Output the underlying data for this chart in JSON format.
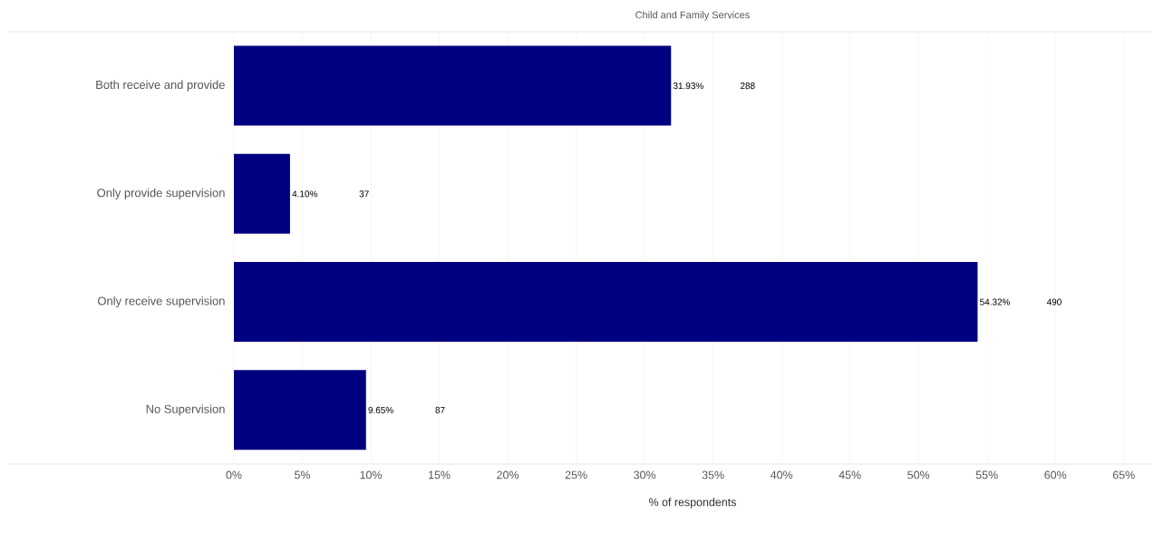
{
  "chart_data": {
    "type": "bar",
    "orientation": "horizontal",
    "title": "Child and Family Services",
    "xlabel": "% of respondents",
    "categories": [
      "Both receive and provide",
      "Only provide supervision",
      "Only receive supervision",
      "No Supervision"
    ],
    "values": [
      31.93,
      4.1,
      54.32,
      9.65
    ],
    "value_labels": [
      "31.93%",
      "4.10%",
      "54.32%",
      "9.65%"
    ],
    "color": "#000080",
    "xlim": [
      0,
      67
    ],
    "xticks": [
      {
        "value": 0,
        "label": "0%"
      },
      {
        "value": 5,
        "label": "5%"
      },
      {
        "value": 10,
        "label": "10%"
      },
      {
        "value": 15,
        "label": "15%"
      },
      {
        "value": 20,
        "label": "20%"
      },
      {
        "value": 25,
        "label": "25%"
      },
      {
        "value": 30,
        "label": "30%"
      },
      {
        "value": 35,
        "label": "35%"
      },
      {
        "value": 40,
        "label": "40%"
      },
      {
        "value": 45,
        "label": "45%"
      },
      {
        "value": 50,
        "label": "50%"
      },
      {
        "value": 55,
        "label": "55%"
      },
      {
        "value": 60,
        "label": "60%"
      },
      {
        "value": 65,
        "label": "65%"
      }
    ],
    "grid": "x",
    "annotations": [
      "288",
      "37",
      "490",
      "87"
    ]
  }
}
